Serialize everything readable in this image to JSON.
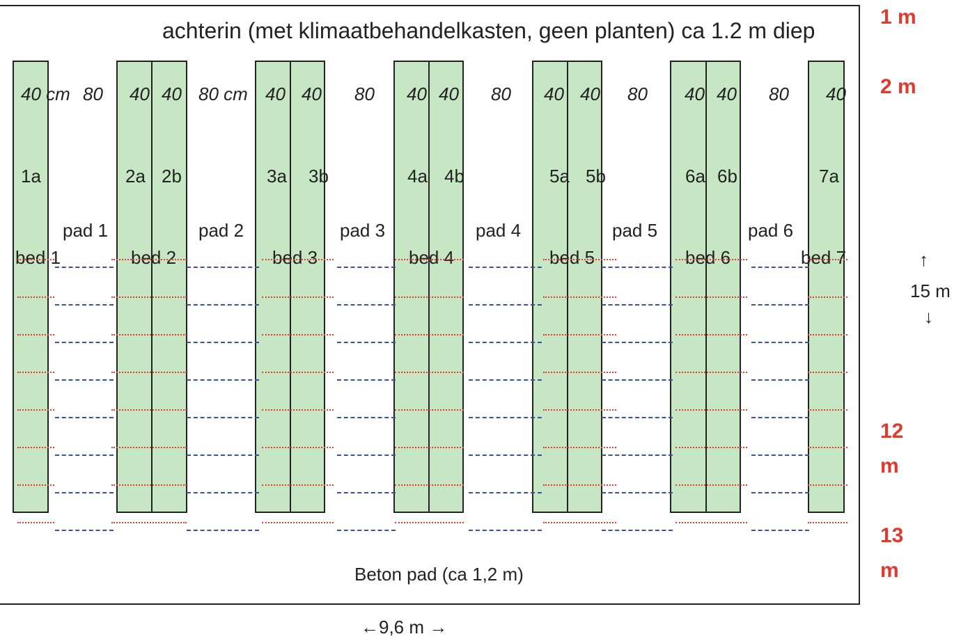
{
  "header": {
    "text": "achterin  (met klimaatbehandelkasten, geen planten) ca 1.2 m diep"
  },
  "footer": {
    "text": "Beton pad (ca 1,2 m)"
  },
  "width_label": "←9,6 m →",
  "length_label": {
    "up": "↑",
    "text": "15 m",
    "down": "↓"
  },
  "side_marks": {
    "m1": "1 m",
    "m2": "2 m",
    "m12a": "12",
    "m12b": "m",
    "m13a": "13",
    "m13b": "m"
  },
  "widths": {
    "w1": "40 cm",
    "w2": "80",
    "w3": "40",
    "w4": "40",
    "w5": "80 cm",
    "w6": "40",
    "w7": "40",
    "w8": "80",
    "w9": "40",
    "w10": "40",
    "w11": "80",
    "w12": "40",
    "w13": "40",
    "w14": "80",
    "w15": "40",
    "w16": "40",
    "w17": "80",
    "w18": "40"
  },
  "sub_beds": [
    "1a",
    "2a",
    "2b",
    "3a",
    "3b",
    "4a",
    "4b",
    "5a",
    "5b",
    "6a",
    "6b",
    "7a"
  ],
  "beds": [
    "bed 1",
    "bed 2",
    "bed 3",
    "bed 4",
    "bed 5",
    "bed 6",
    "bed 7"
  ],
  "paths": [
    "pad 1",
    "pad 2",
    "pad 3",
    "pad 4",
    "pad 5",
    "pad 6"
  ],
  "colors": {
    "bed_fill": "#c6e6c4",
    "outline": "#222222",
    "red_dotted": "#e53a2e",
    "blue_dashed": "#3850a8",
    "red_text": "#e03a2e"
  }
}
